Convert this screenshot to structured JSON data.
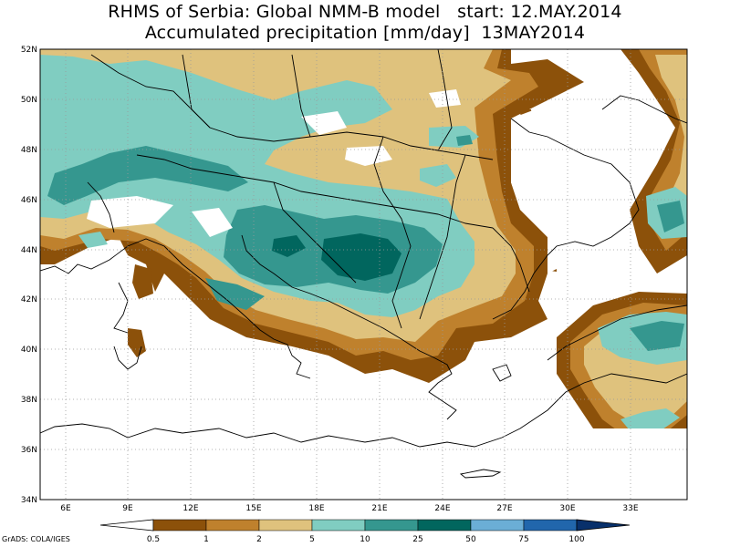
{
  "title": {
    "line1": "RHMS of Serbia: Global NMM-B model   start: 12.MAY.2014",
    "line2": "Accumulated precipitation [mm/day]  13MAY2014"
  },
  "axes": {
    "lat_labels": [
      "52N",
      "50N",
      "48N",
      "46N",
      "44N",
      "42N",
      "40N",
      "38N",
      "36N",
      "34N"
    ],
    "lon_labels": [
      "6E",
      "9E",
      "12E",
      "15E",
      "18E",
      "21E",
      "24E",
      "27E",
      "30E",
      "33E"
    ]
  },
  "colorbar": {
    "levels": [
      "0.5",
      "1",
      "2",
      "5",
      "10",
      "25",
      "50",
      "75",
      "100"
    ],
    "colors": [
      "#ffffff",
      "#8c510a",
      "#bf812d",
      "#dfc27d",
      "#80cdc1",
      "#35978f",
      "#01665e",
      "#6baed6",
      "#2166ac",
      "#08306b"
    ]
  },
  "credit": "GrADS: COLA/IGES"
}
